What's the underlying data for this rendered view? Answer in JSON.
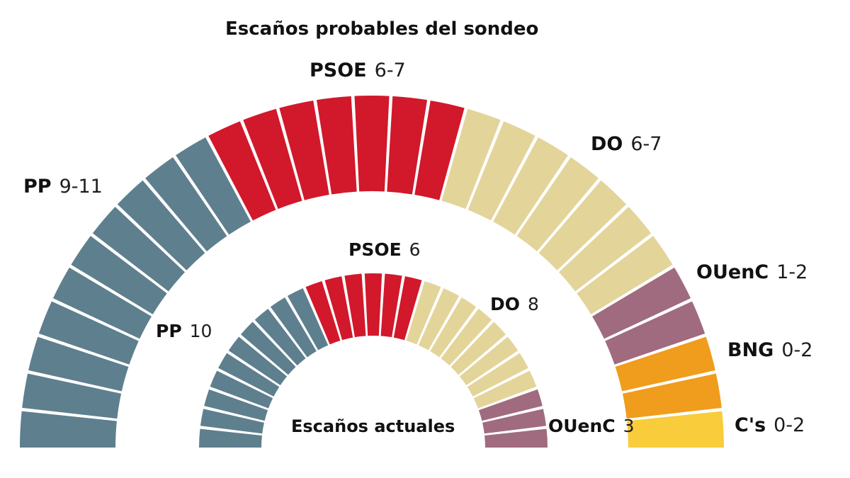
{
  "chart_data": {
    "type": "hemicycle",
    "title": "Escaños probables del sondeo",
    "outer_ring": {
      "name": "Escaños probables del sondeo",
      "parties": [
        {
          "name": "PP",
          "seats_label": "9-11",
          "seats_drawn": 10,
          "color": "#5e7f8e"
        },
        {
          "name": "PSOE",
          "seats_label": "6-7",
          "seats_drawn": 7,
          "color": "#d2182b"
        },
        {
          "name": "DO",
          "seats_label": "6-7",
          "seats_drawn": 7,
          "color": "#e3d49a"
        },
        {
          "name": "OUenC",
          "seats_label": "1-2",
          "seats_drawn": 2,
          "color": "#a06b7f"
        },
        {
          "name": "BNG",
          "seats_label": "0-2",
          "seats_drawn": 2,
          "color": "#f09c1c"
        },
        {
          "name": "C's",
          "seats_label": "0-2",
          "seats_drawn": 1,
          "color": "#f8cc3a"
        }
      ]
    },
    "inner_ring": {
      "name": "Escaños actuales",
      "parties": [
        {
          "name": "PP",
          "seats_label": "10",
          "seats_drawn": 10,
          "color": "#5e7f8e"
        },
        {
          "name": "PSOE",
          "seats_label": "6",
          "seats_drawn": 6,
          "color": "#d2182b"
        },
        {
          "name": "DO",
          "seats_label": "8",
          "seats_drawn": 8,
          "color": "#e3d49a"
        },
        {
          "name": "OUenC",
          "seats_label": "3",
          "seats_drawn": 3,
          "color": "#a06b7f"
        }
      ]
    }
  }
}
